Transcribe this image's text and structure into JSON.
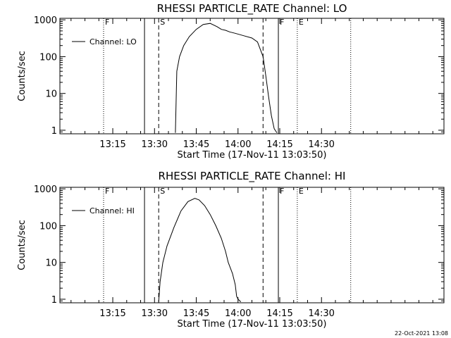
{
  "chart_data": [
    {
      "type": "line",
      "title": "RHESSI PARTICLE_RATE Channel: LO",
      "xlabel": "Start Time (17-Nov-11 13:03:50)",
      "ylabel": "Counts/sec",
      "x_axis": {
        "range_minutes": [
          -8,
          130
        ],
        "tick_values_minutes": [
          11,
          26,
          41,
          56,
          71,
          86
        ],
        "tick_labels": [
          "13:15",
          "13:30",
          "13:45",
          "14:00",
          "14:15",
          "14:30"
        ]
      },
      "y_axis": {
        "scale": "log",
        "range": [
          0.8,
          1100
        ],
        "tick_values": [
          1,
          10,
          100,
          1000
        ],
        "tick_labels": [
          "1",
          "10",
          "100",
          "1000"
        ]
      },
      "legend": {
        "position": "top-left",
        "entries": [
          "Channel: LO"
        ]
      },
      "series": [
        {
          "name": "Channel: LO",
          "x_minutes": [
            33.5,
            34,
            35,
            36.5,
            38.5,
            41,
            43.5,
            46,
            48.5,
            50,
            51.5,
            53,
            55,
            58,
            61,
            63,
            65,
            66,
            67,
            68,
            69,
            70
          ],
          "y": [
            0.85,
            40,
            100,
            200,
            350,
            550,
            750,
            800,
            650,
            550,
            520,
            470,
            430,
            370,
            320,
            250,
            100,
            30,
            8,
            2.5,
            1.1,
            0.85
          ]
        }
      ],
      "vertical_lines": [
        {
          "label": "F",
          "x_minutes": 7.7,
          "style": "dotted"
        },
        {
          "label": "",
          "x_minutes": 22.4,
          "style": "solid"
        },
        {
          "label": "S",
          "x_minutes": 27.5,
          "style": "dashed"
        },
        {
          "label": "",
          "x_minutes": 65,
          "style": "dashed"
        },
        {
          "label": "F",
          "x_minutes": 70.5,
          "style": "solid"
        },
        {
          "label": "E",
          "x_minutes": 77.3,
          "style": "dotted"
        },
        {
          "label": "",
          "x_minutes": 96.5,
          "style": "dotted"
        }
      ]
    },
    {
      "type": "line",
      "title": "RHESSI PARTICLE_RATE Channel: HI",
      "xlabel": "Start Time (17-Nov-11 13:03:50)",
      "ylabel": "Counts/sec",
      "x_axis": {
        "range_minutes": [
          -8,
          130
        ],
        "tick_values_minutes": [
          11,
          26,
          41,
          56,
          71,
          86
        ],
        "tick_labels": [
          "13:15",
          "13:30",
          "13:45",
          "14:00",
          "14:15",
          "14:30"
        ]
      },
      "y_axis": {
        "scale": "log",
        "range": [
          0.8,
          1100
        ],
        "tick_values": [
          1,
          10,
          100,
          1000
        ],
        "tick_labels": [
          "1",
          "10",
          "100",
          "1000"
        ]
      },
      "legend": {
        "position": "top-left",
        "entries": [
          "Channel: HI"
        ]
      },
      "series": [
        {
          "name": "Channel: HI",
          "x_minutes": [
            27.5,
            28,
            29,
            30.5,
            33,
            35.5,
            38,
            40.5,
            42,
            44,
            46,
            48,
            50,
            51.5,
            52.5,
            54,
            55,
            55.5,
            56,
            57
          ],
          "y": [
            0.85,
            3,
            10,
            28,
            90,
            250,
            450,
            550,
            500,
            350,
            200,
            100,
            45,
            20,
            10,
            5,
            2.5,
            1.2,
            1,
            0.85
          ]
        }
      ],
      "vertical_lines": [
        {
          "label": "F",
          "x_minutes": 7.7,
          "style": "dotted"
        },
        {
          "label": "",
          "x_minutes": 22.4,
          "style": "solid"
        },
        {
          "label": "S",
          "x_minutes": 27.5,
          "style": "dashed"
        },
        {
          "label": "",
          "x_minutes": 65,
          "style": "dashed"
        },
        {
          "label": "F",
          "x_minutes": 70.5,
          "style": "solid"
        },
        {
          "label": "E",
          "x_minutes": 77.3,
          "style": "dotted"
        },
        {
          "label": "",
          "x_minutes": 96.5,
          "style": "dotted"
        }
      ]
    }
  ],
  "timestamp": "22-Oct-2021 13:08"
}
